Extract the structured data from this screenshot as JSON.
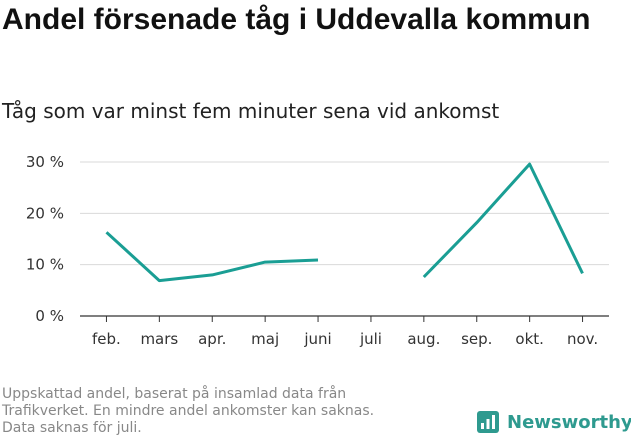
{
  "header": {
    "title": "Andel försenade tåg i Uddevalla kommun",
    "subtitle": "Tåg som var minst fem minuter sena vid ankomst"
  },
  "footnote": {
    "lines": [
      "Uppskattad andel, baserat på insamlad data från",
      "Trafikverket. En mindre andel ankomster kan saknas.",
      "Data saknas för juli."
    ]
  },
  "brand": {
    "name": "Newsworthy",
    "icon": "newsworthy-logo-icon",
    "color": "#2e9a8f"
  },
  "chart_data": {
    "type": "line",
    "title": "Andel försenade tåg i Uddevalla kommun",
    "subtitle": "Tåg som var minst fem minuter sena vid ankomst",
    "categories": [
      "feb.",
      "mars",
      "apr.",
      "maj",
      "juni",
      "juli",
      "aug.",
      "sep.",
      "okt.",
      "nov."
    ],
    "series": [
      {
        "values": [
          16.3,
          6.9,
          8.0,
          10.5,
          10.9,
          null,
          7.6,
          18.2,
          29.6,
          8.3
        ],
        "color": "#1a9e94"
      }
    ],
    "yticks": [
      0,
      10,
      20,
      30
    ],
    "ytick_labels": [
      "0 %",
      "10 %",
      "20 %",
      "30 %"
    ],
    "ylim": [
      0,
      30
    ],
    "xlabel": "",
    "ylabel": "",
    "grid": true,
    "gridColor": "#d9d9d9",
    "axisColor": "#333333",
    "legend": "none"
  }
}
